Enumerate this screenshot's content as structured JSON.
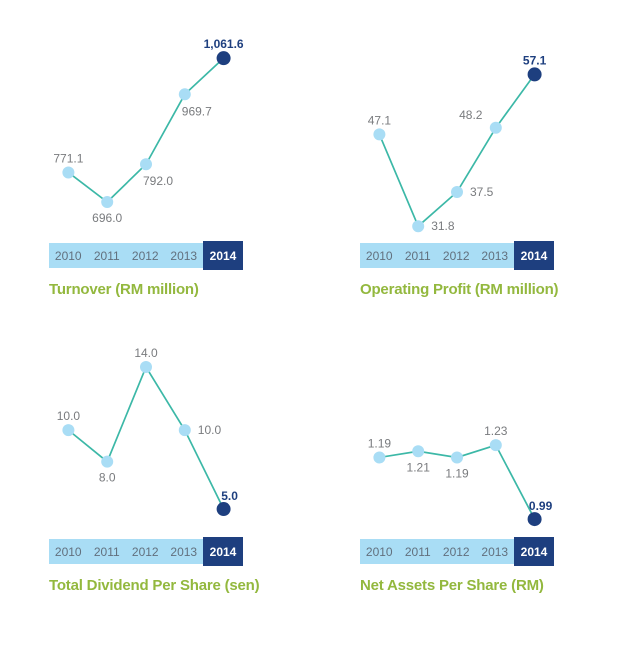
{
  "colors": {
    "line": "#3cb8a7",
    "dot": "#a9ddf5",
    "highlight": "#1e3f7f",
    "value_label": "#797b7e",
    "year_bar_bg": "#a9ddf5",
    "year_text": "#62707e",
    "year_highlight_text": "#ffffff",
    "title": "#93b83e"
  },
  "years": [
    "2010",
    "2011",
    "2012",
    "2013",
    "2014"
  ],
  "chart_data": [
    {
      "id": "turnover",
      "type": "line",
      "title": "Turnover (RM million)",
      "categories": [
        "2010",
        "2011",
        "2012",
        "2013",
        "2014"
      ],
      "values": [
        771.1,
        696.0,
        792.0,
        969.7,
        1061.6
      ],
      "point_labels": [
        "771.1",
        "696.0",
        "792.0",
        "969.7",
        "1,061.6"
      ],
      "ylim": [
        630,
        1095
      ],
      "highlight_index": 4,
      "label_positions": [
        "above",
        "below",
        "below-right",
        "below-right",
        "above"
      ],
      "grid": false,
      "legend": "none"
    },
    {
      "id": "operating-profit",
      "type": "line",
      "title": "Operating Profit (RM million)",
      "categories": [
        "2010",
        "2011",
        "2012",
        "2013",
        "2014"
      ],
      "values": [
        47.1,
        31.8,
        37.5,
        48.2,
        57.1
      ],
      "point_labels": [
        "47.1",
        "31.8",
        "37.5",
        "48.2",
        "57.1"
      ],
      "ylim": [
        31.5,
        62
      ],
      "highlight_index": 4,
      "label_positions": [
        "above",
        "right",
        "right",
        "above-left",
        "above"
      ],
      "grid": false,
      "legend": "none"
    },
    {
      "id": "total-dividend-per-share",
      "type": "line",
      "title": "Total Dividend Per Share (sen)",
      "categories": [
        "2010",
        "2011",
        "2012",
        "2013",
        "2014"
      ],
      "values": [
        10.0,
        8.0,
        14.0,
        10.0,
        5.0
      ],
      "point_labels": [
        "10.0",
        "8.0",
        "14.0",
        "10.0",
        "5.0"
      ],
      "ylim": [
        4.05,
        15.65
      ],
      "highlight_index": 4,
      "label_positions": [
        "above",
        "below",
        "above",
        "right",
        "above-right"
      ],
      "grid": false,
      "legend": "none"
    },
    {
      "id": "net-assets-per-share",
      "type": "line",
      "title": "Net Assets Per Share (RM)",
      "categories": [
        "2010",
        "2011",
        "2012",
        "2013",
        "2014"
      ],
      "values": [
        1.19,
        1.21,
        1.19,
        1.23,
        0.99
      ],
      "point_labels": [
        "1.19",
        "1.21",
        "1.19",
        "1.23",
        "0.99"
      ],
      "ylim": [
        0.974,
        1.568
      ],
      "highlight_index": 4,
      "label_positions": [
        "above",
        "below",
        "below",
        "above",
        "above-right"
      ],
      "grid": false,
      "legend": "none"
    }
  ]
}
